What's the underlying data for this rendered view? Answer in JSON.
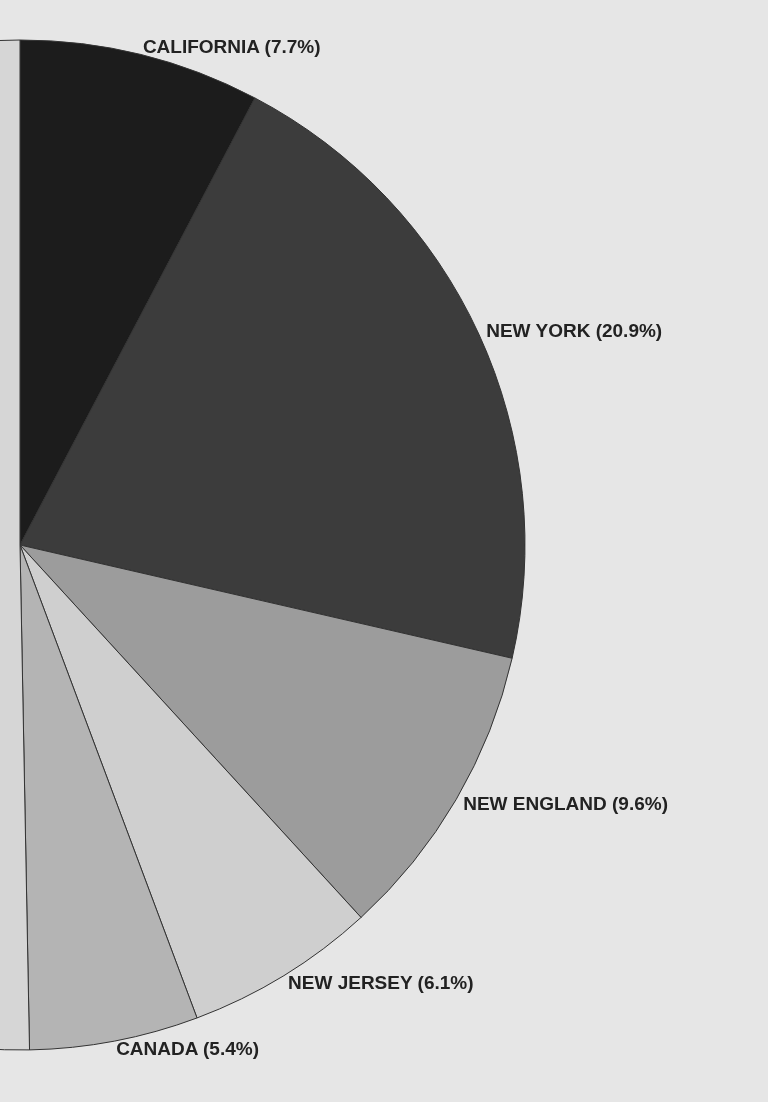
{
  "chart_data": {
    "type": "pie",
    "categories": [
      "CALIFORNIA",
      "NEW YORK",
      "NEW ENGLAND",
      "NEW JERSEY",
      "CANADA",
      null
    ],
    "values": [
      7.7,
      20.9,
      9.6,
      6.1,
      5.4,
      50.3
    ],
    "value_labels": [
      "(7.7%)",
      "(20.9%)",
      "(9.6%)",
      "(6.1%)",
      "(5.4%)",
      null
    ],
    "colors": [
      "#1c1c1c",
      "#3c3c3c",
      "#9c9c9c",
      "#cfcfcf",
      "#b4b4b4",
      "#d6d6d6"
    ],
    "legend": false
  }
}
